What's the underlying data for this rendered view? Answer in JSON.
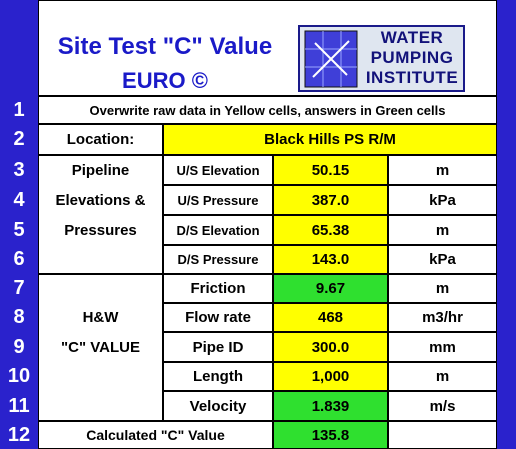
{
  "header": {
    "title": "Site Test \"C\" Value",
    "subtitle": "EURO ©",
    "logo": [
      "WATER",
      "PUMPING",
      "INSTITUTE"
    ]
  },
  "row_numbers": [
    "1",
    "2",
    "3",
    "4",
    "5",
    "6",
    "7",
    "8",
    "9",
    "10",
    "11",
    "12"
  ],
  "instruction": "Overwrite raw data in Yellow cells, answers in Green cells",
  "location": {
    "label": "Location:",
    "value": "Black Hills PS R/M"
  },
  "pipeline_group": [
    "Pipeline",
    "Elevations &",
    "Pressures"
  ],
  "cvalue_group": [
    "H&W",
    "\"C\" VALUE"
  ],
  "rows": [
    {
      "label": "U/S Elevation",
      "value": "50.15",
      "unit": "m"
    },
    {
      "label": "U/S Pressure",
      "value": "387.0",
      "unit": "kPa"
    },
    {
      "label": "D/S Elevation",
      "value": "65.38",
      "unit": "m"
    },
    {
      "label": "D/S Pressure",
      "value": "143.0",
      "unit": "kPa"
    },
    {
      "label": "Friction",
      "value": "9.67",
      "unit": "m"
    },
    {
      "label": "Flow rate",
      "value": "468",
      "unit": "m3/hr"
    },
    {
      "label": "Pipe ID",
      "value": "300.0",
      "unit": "mm"
    },
    {
      "label": "Length",
      "value": "1,000",
      "unit": "m"
    },
    {
      "label": "Velocity",
      "value": "1.839",
      "unit": "m/s"
    }
  ],
  "result": {
    "label": "Calculated \"C\" Value",
    "value": "135.8"
  }
}
